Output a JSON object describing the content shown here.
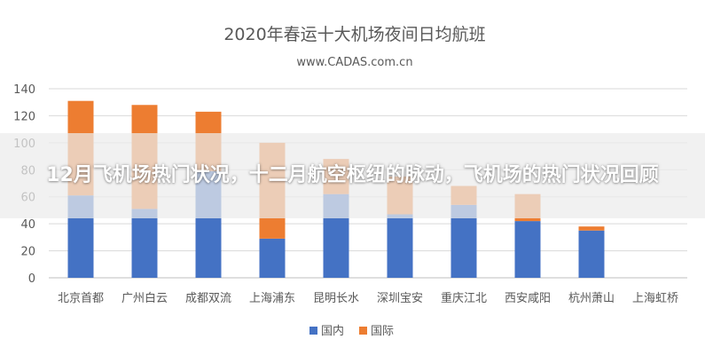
{
  "overlay": {
    "headline": "12月飞机场热门状况，十二月航空枢纽的脉动，飞机场的热门状况回顾"
  },
  "colors": {
    "domestic": "#4472C4",
    "international": "#ED7D31",
    "grid": "#D9D9D9",
    "text": "#595959"
  },
  "chart_data": {
    "type": "bar",
    "stacked": true,
    "title": "2020年春运十大机场夜间日均航班",
    "subtitle": "www.CADAS.com.cn",
    "categories": [
      "北京首都",
      "广州白云",
      "成都双流",
      "上海浦东",
      "昆明长水",
      "深圳宝安",
      "重庆江北",
      "西安咸阳",
      "杭州萧山",
      "上海虹桥"
    ],
    "series": [
      {
        "name": "国内",
        "values": [
          61,
          51,
          79,
          29,
          62,
          47,
          54,
          42,
          35,
          0
        ]
      },
      {
        "name": "国际",
        "values": [
          70,
          77,
          44,
          71,
          26,
          28,
          14,
          20,
          3,
          0
        ]
      }
    ],
    "ylim": [
      0,
      140
    ],
    "yticks": [
      "0",
      "20",
      "40",
      "60",
      "80",
      "100",
      "120",
      "140"
    ],
    "grid": true,
    "legend_position": "bottom"
  }
}
